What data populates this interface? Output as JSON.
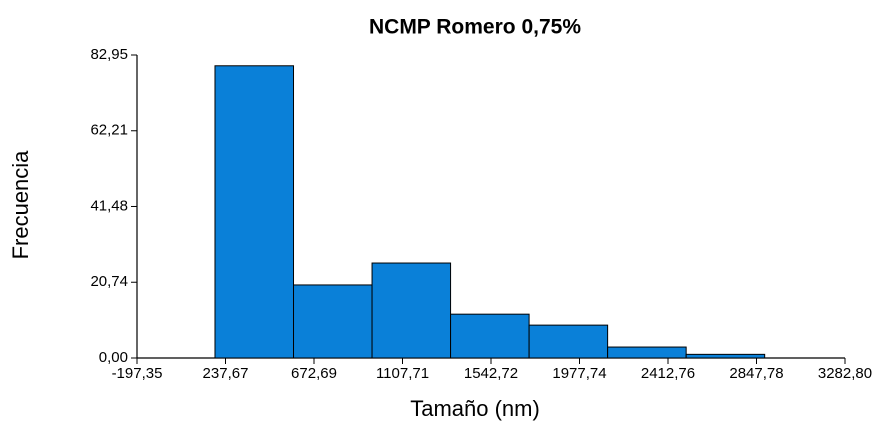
{
  "chart_data": {
    "type": "histogram",
    "title": "NCMP Romero 0,75%",
    "x_label": "Tamaño (nm)",
    "y_label": "Frecuencia",
    "bins": [
      186,
      572,
      958,
      1344,
      1730,
      2116,
      2502,
      2888
    ],
    "values": [
      80,
      20,
      26,
      12,
      9,
      3,
      1
    ],
    "color": "#0a80d8",
    "xlim": [
      -197.35,
      3282.8
    ],
    "xticks": [
      {
        "value": -197.35,
        "label": "-197,35"
      },
      {
        "value": 237.67,
        "label": "237,67"
      },
      {
        "value": 672.69,
        "label": "672,69"
      },
      {
        "value": 1107.71,
        "label": "1107,71"
      },
      {
        "value": 1542.72,
        "label": "1542,72"
      },
      {
        "value": 1977.74,
        "label": "1977,74"
      },
      {
        "value": 2412.76,
        "label": "2412,76"
      },
      {
        "value": 2847.78,
        "label": "2847,78"
      },
      {
        "value": 3282.8,
        "label": "3282,80"
      }
    ],
    "ylim": [
      0,
      82.95
    ],
    "yticks": [
      {
        "value": 0,
        "label": "0,00"
      },
      {
        "value": 20.74,
        "label": "20,74"
      },
      {
        "value": 41.48,
        "label": "41,48"
      },
      {
        "value": 62.21,
        "label": "62,21"
      },
      {
        "value": 82.95,
        "label": "82,95"
      }
    ],
    "grid": false
  }
}
